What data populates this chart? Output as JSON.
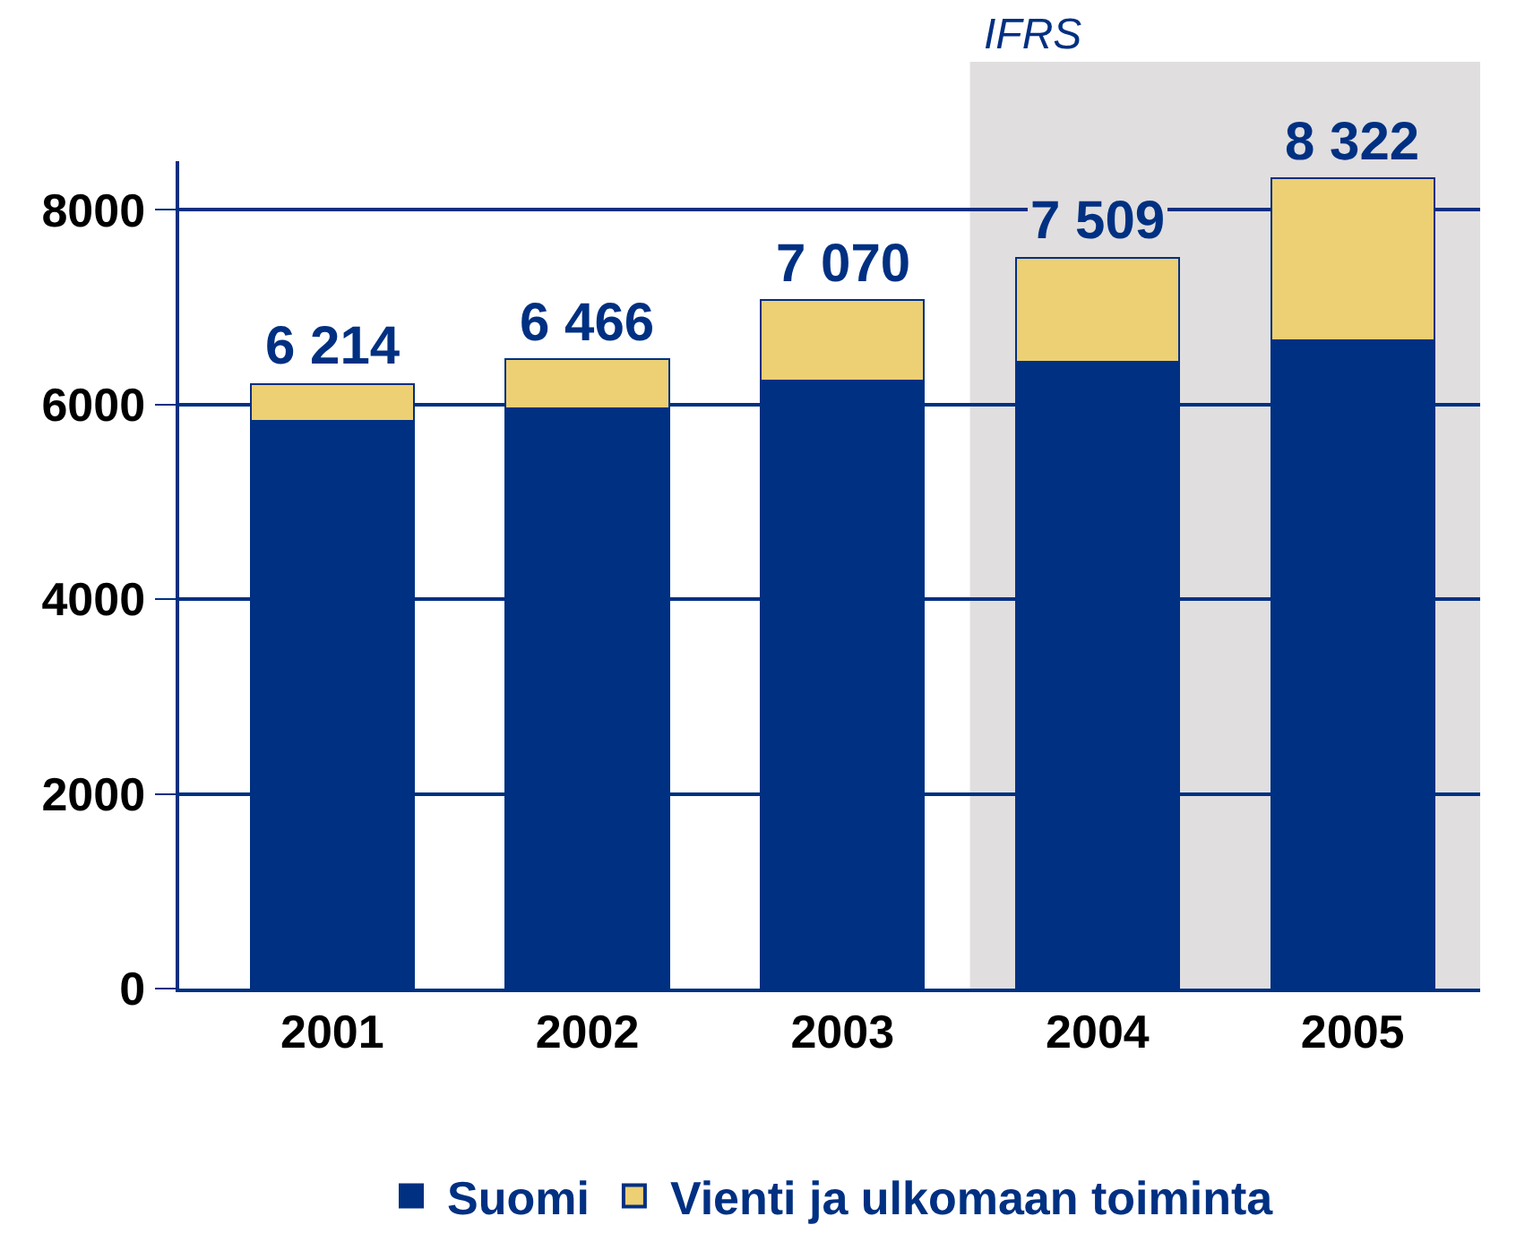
{
  "chart_data": {
    "type": "bar",
    "stacked": true,
    "categories": [
      "2001",
      "2002",
      "2003",
      "2004",
      "2005"
    ],
    "series": [
      {
        "name": "Suomi",
        "color": "#003082",
        "values": [
          5830,
          5960,
          6250,
          6440,
          6660
        ]
      },
      {
        "name": "Vienti ja ulkomaan toiminta",
        "color": "#edcf74",
        "values": [
          384,
          506,
          820,
          1069,
          1662
        ]
      }
    ],
    "totals": [
      "6 214",
      "6 466",
      "7 070",
      "7 509",
      "8 322"
    ],
    "ylim": [
      0,
      8500
    ],
    "yticks": [
      0,
      2000,
      4000,
      6000,
      8000
    ],
    "grid": "y",
    "legend": "bottom",
    "bands": [
      {
        "axis": "x",
        "from": "2004",
        "to": "2005",
        "label": "IFRS",
        "color": "#e0dedf"
      }
    ]
  }
}
